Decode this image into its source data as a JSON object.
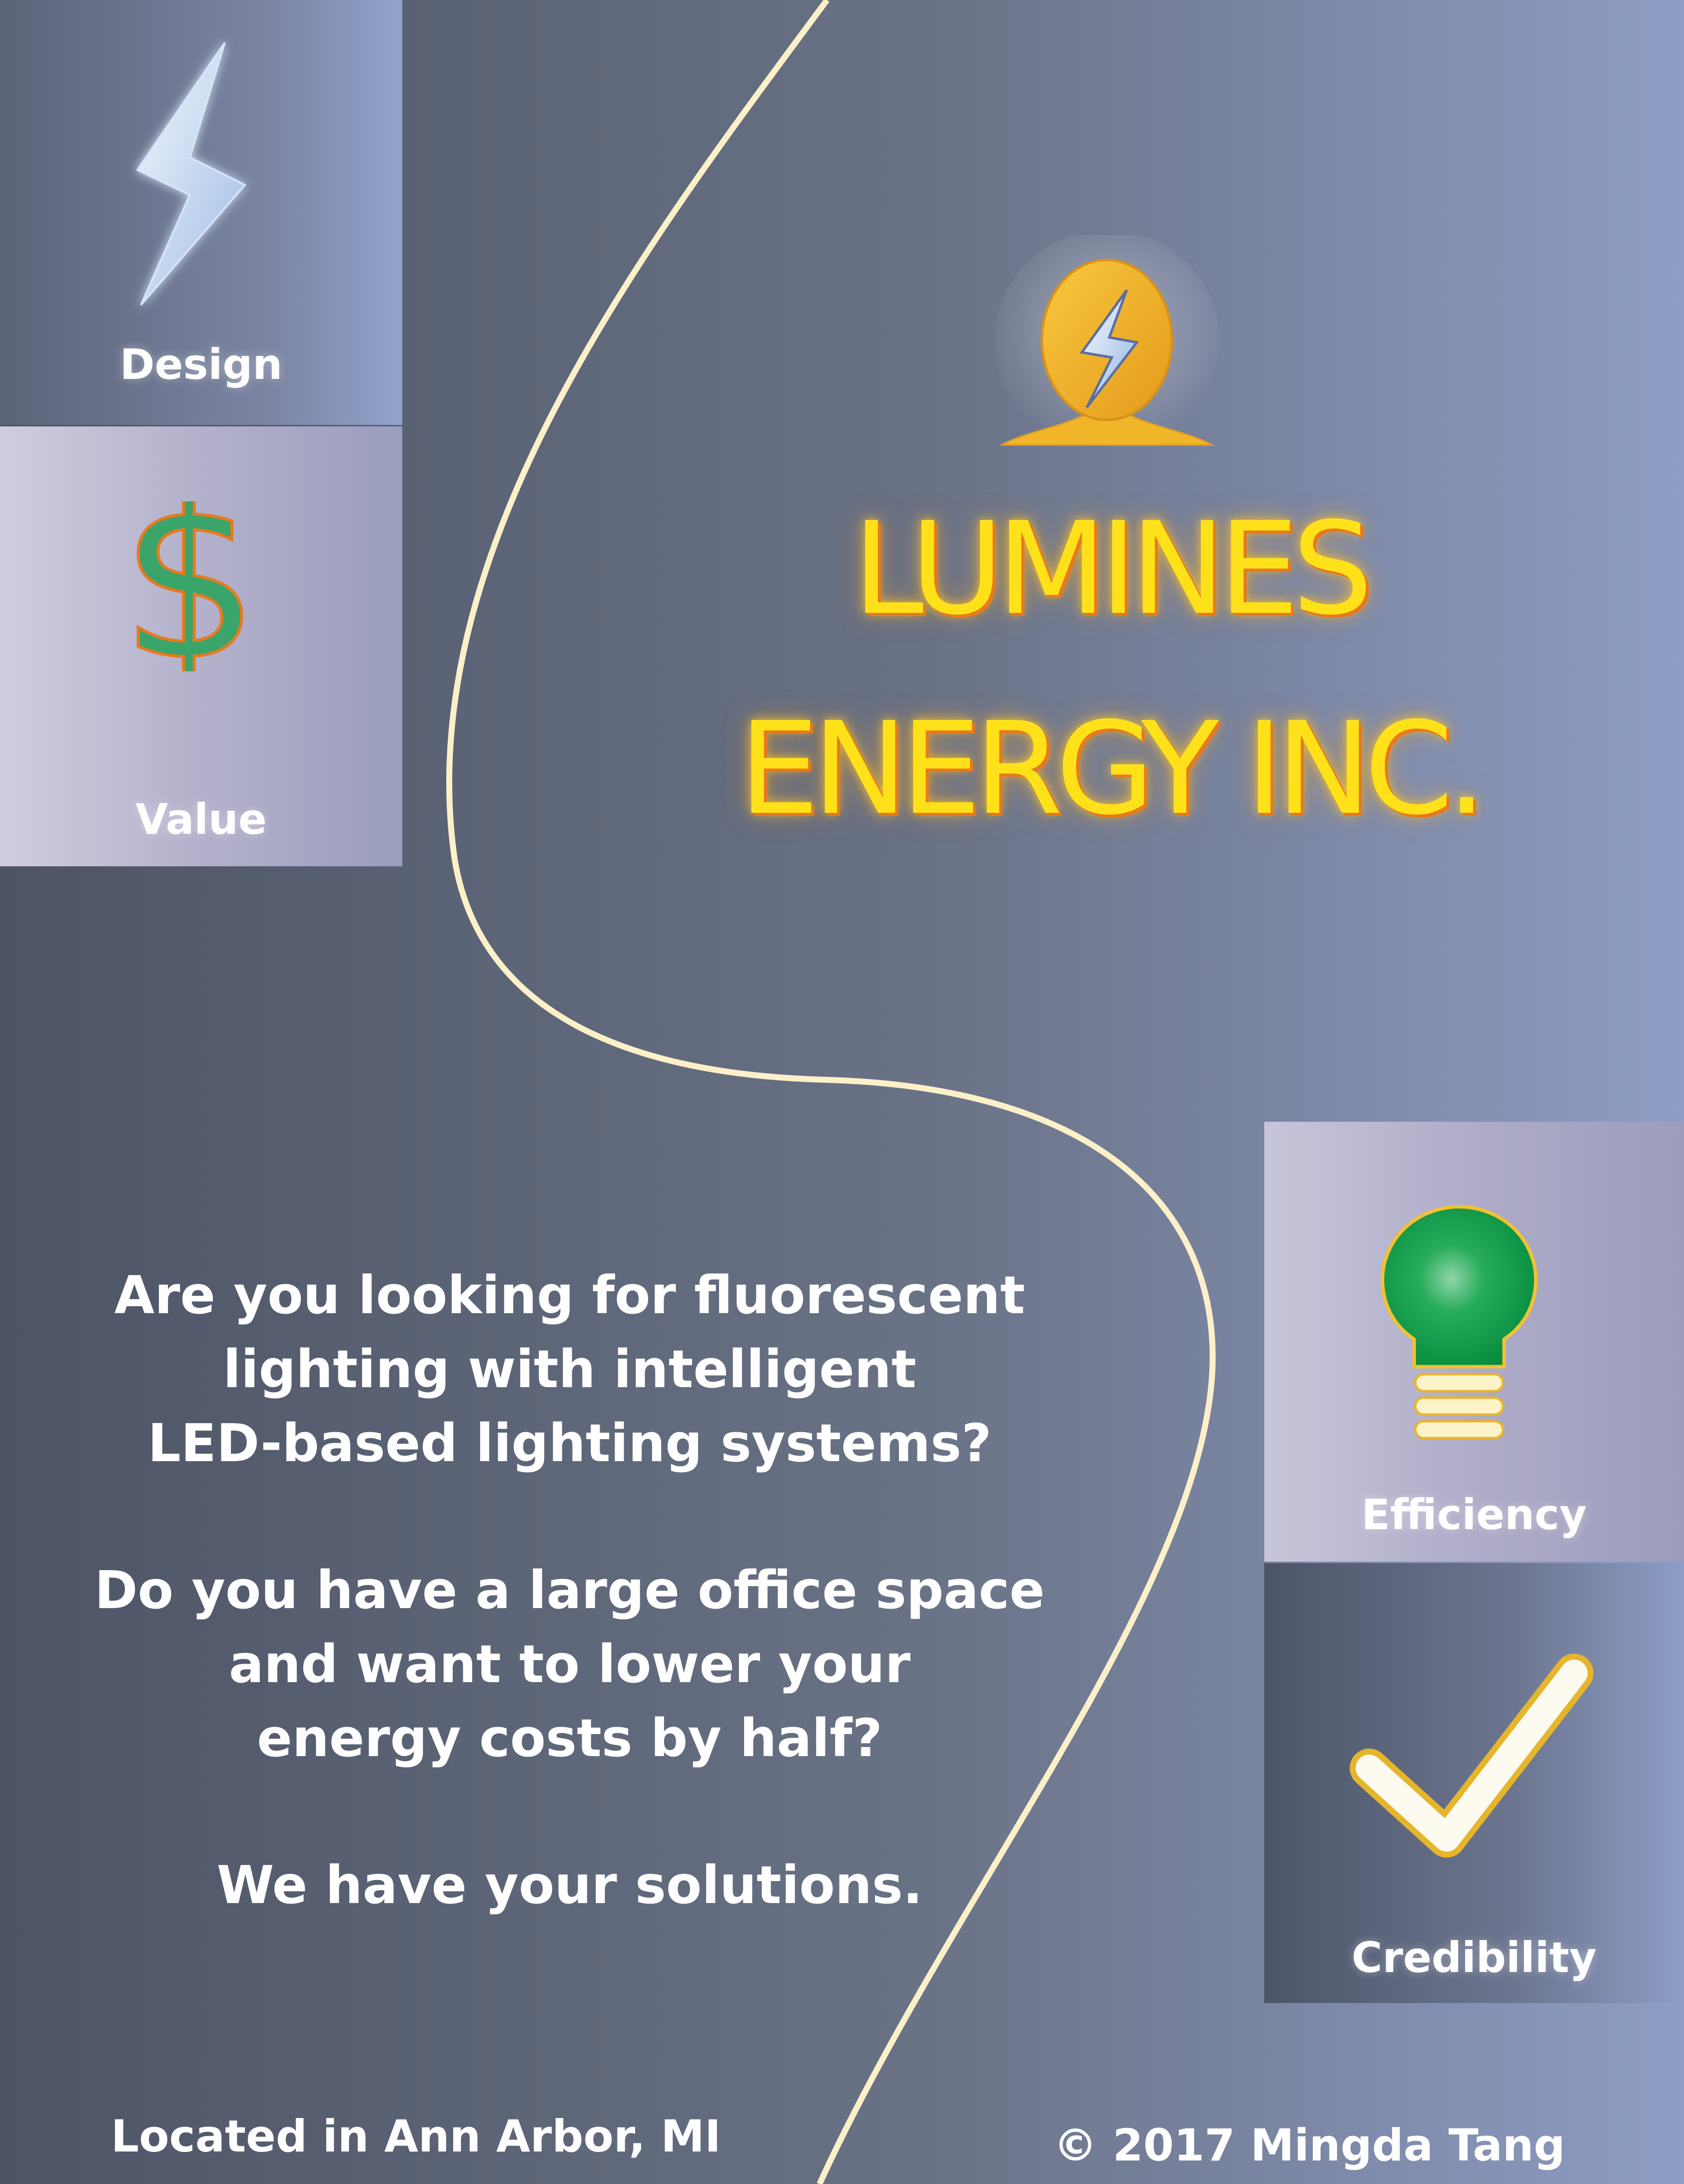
{
  "panels": {
    "design": {
      "label": "Design",
      "icon": "lightning-bolt-icon"
    },
    "value": {
      "label": "Value",
      "icon": "dollar-sign-icon",
      "glyph": "$"
    },
    "efficiency": {
      "label": "Efficiency",
      "icon": "light-bulb-icon"
    },
    "credibility": {
      "label": "Credibility",
      "icon": "checkmark-icon"
    }
  },
  "company": {
    "line1": "LUMINES",
    "line2": "ENERGY INC.",
    "logo_icon": "lightning-egg-logo-icon"
  },
  "copy": {
    "lines": [
      "Are you looking for fluorescent",
      "lighting with intelligent",
      "LED-based lighting systems?",
      "Do you have a large office space",
      "and want to lower your",
      "energy costs by half?",
      "We have your solutions."
    ]
  },
  "footer": {
    "location": "Located in Ann Arbor, MI",
    "copyright": "© 2017 Mingda Tang"
  },
  "colors": {
    "title_fill": "#ffe11a",
    "title_outline": "#e8791e",
    "curve": "#fbf0c8",
    "dollar_green": "#3aa56a",
    "dollar_outline": "#e8791e",
    "bulb_green": "#0c9a48",
    "bulb_outline": "#f2c232",
    "check_fill": "#fdfaf0",
    "check_outline": "#e5b52c",
    "bolt_light": "#e7eef9",
    "bolt_blue": "#a3c0e6",
    "logo_gold": "#f2b52a"
  }
}
